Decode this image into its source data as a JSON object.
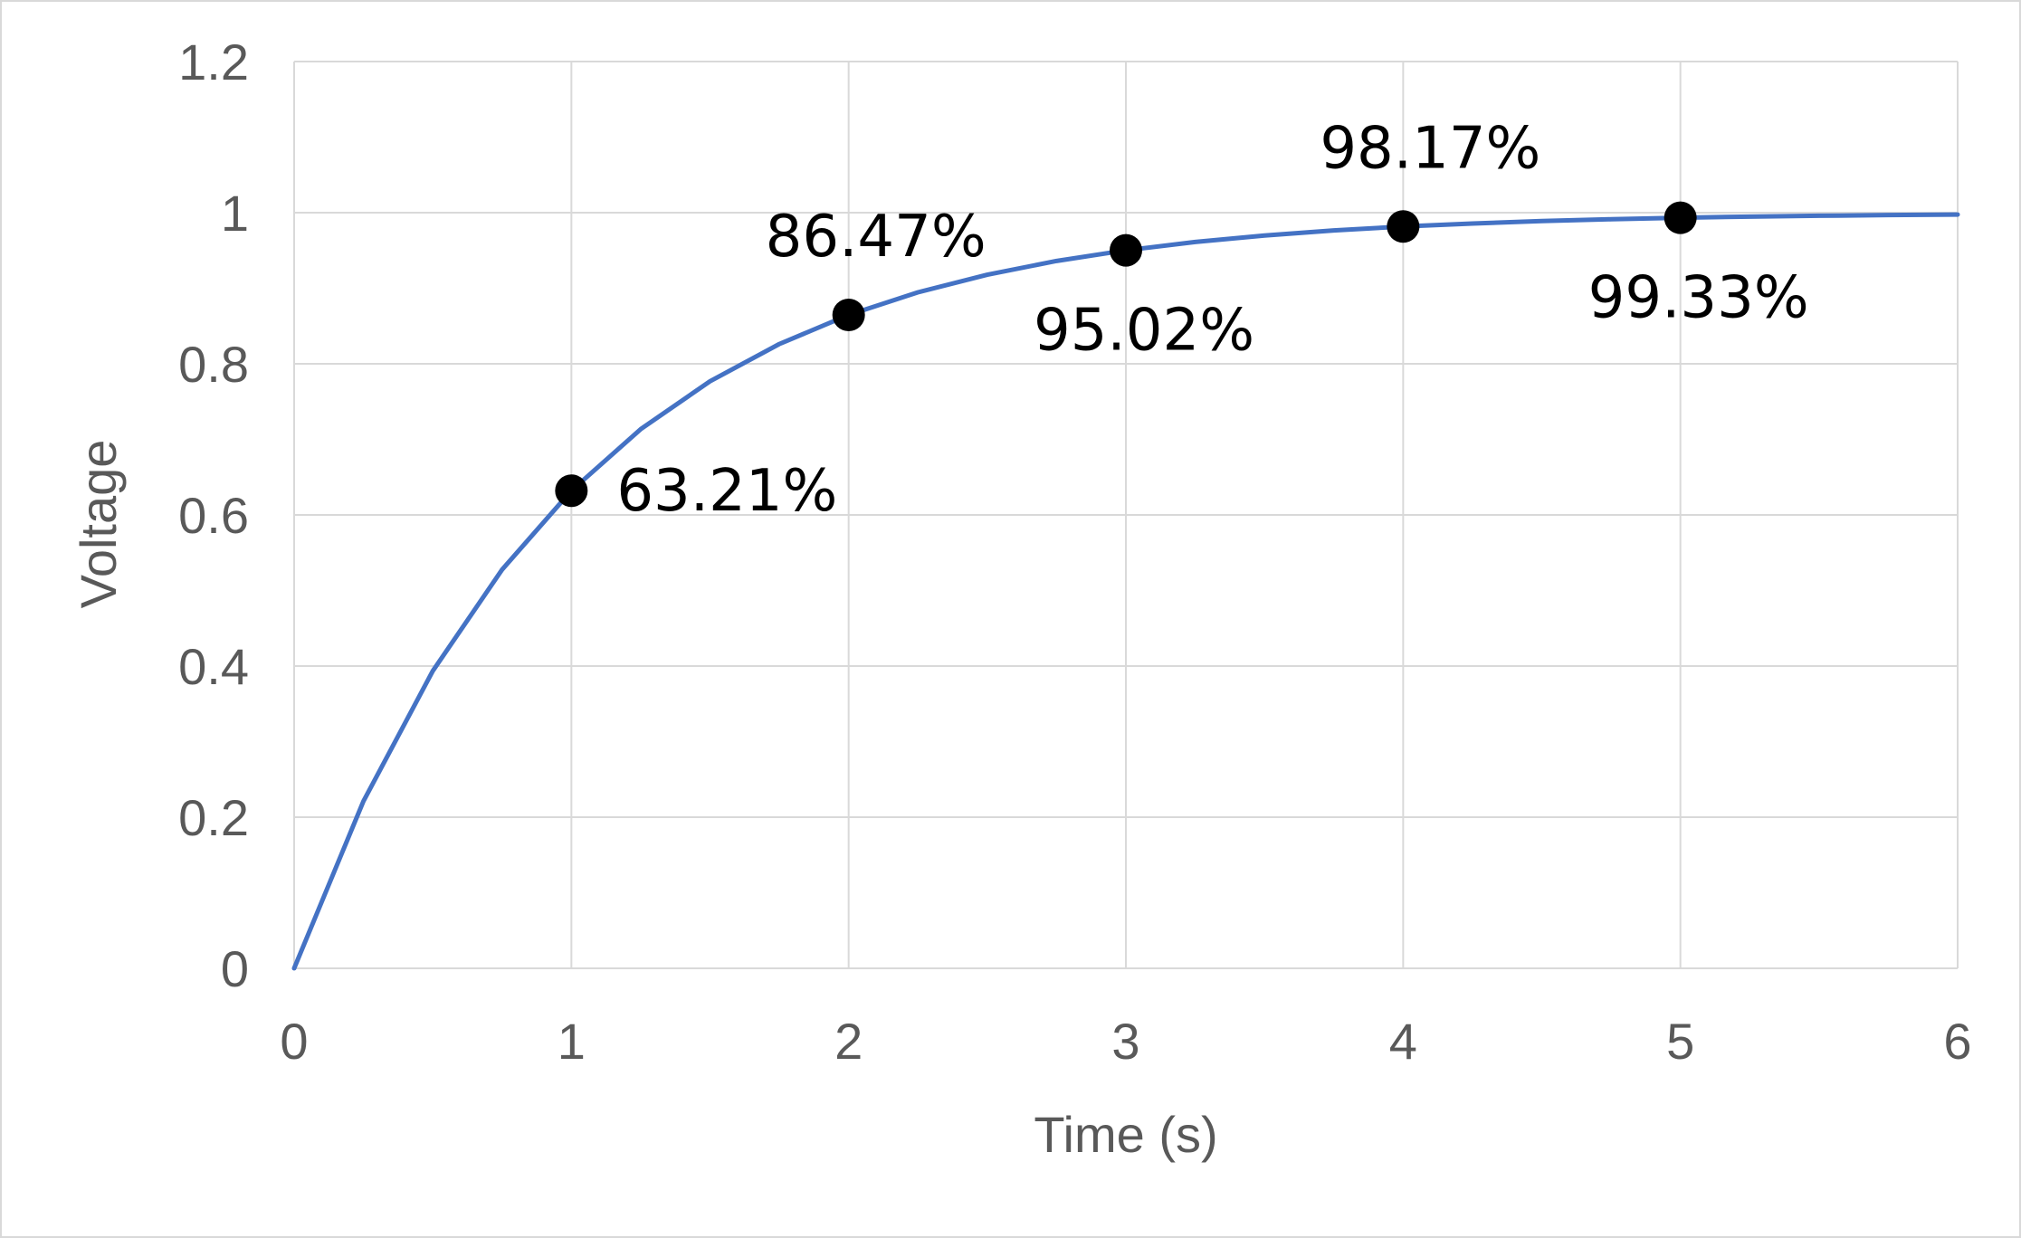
{
  "chart_data": {
    "type": "line",
    "title": "",
    "xlabel": "Time (s)",
    "ylabel": "Voltage",
    "xlim": [
      0,
      6
    ],
    "ylim": [
      0,
      1.2
    ],
    "x_ticks": [
      "0",
      "1",
      "2",
      "3",
      "4",
      "5",
      "6"
    ],
    "y_ticks": [
      "0",
      "0.2",
      "0.4",
      "0.6",
      "0.8",
      "1",
      "1.2"
    ],
    "grid": true,
    "legend": "none",
    "series": [
      {
        "kind": "line",
        "color": "#4472c4",
        "x": [
          0,
          0.25,
          0.5,
          0.75,
          1,
          1.25,
          1.5,
          1.75,
          2,
          2.25,
          2.5,
          2.75,
          3,
          3.25,
          3.5,
          3.75,
          4,
          4.25,
          4.5,
          4.75,
          5,
          5.25,
          5.5,
          5.75,
          6
        ],
        "y": [
          0,
          0.2212,
          0.3935,
          0.5276,
          0.6321,
          0.7135,
          0.7769,
          0.8262,
          0.8647,
          0.8946,
          0.9179,
          0.9361,
          0.9502,
          0.9612,
          0.9698,
          0.9765,
          0.9817,
          0.9857,
          0.9889,
          0.9913,
          0.9933,
          0.9948,
          0.9959,
          0.9968,
          0.9975
        ]
      },
      {
        "kind": "points",
        "color": "#000000",
        "points": [
          {
            "x": 1,
            "y": 0.6321,
            "label": "63.21%",
            "label_pos": "right"
          },
          {
            "x": 2,
            "y": 0.8647,
            "label": "86.47%",
            "label_pos": "above"
          },
          {
            "x": 3,
            "y": 0.9502,
            "label": "95.02%",
            "label_pos": "below"
          },
          {
            "x": 4,
            "y": 0.9817,
            "label": "98.17%",
            "label_pos": "above"
          },
          {
            "x": 5,
            "y": 0.9933,
            "label": "99.33%",
            "label_pos": "below"
          }
        ]
      }
    ]
  }
}
